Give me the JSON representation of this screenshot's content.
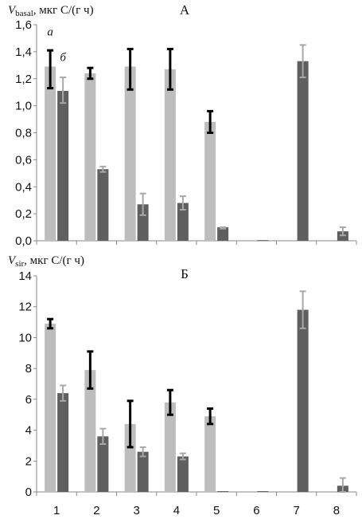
{
  "chart_data": [
    {
      "type": "bar",
      "title": "А",
      "ylabel_main": "V",
      "ylabel_sub": "basal",
      "ylabel_rest": ", мкг С/(г ч)",
      "categories": [
        "1",
        "2",
        "3",
        "4",
        "5",
        "6",
        "7",
        "8"
      ],
      "ylim": [
        0,
        1.6
      ],
      "yticks": [
        "0,0",
        "0,2",
        "0,4",
        "0,6",
        "0,8",
        "1,0",
        "1,2",
        "1,4",
        "1,6"
      ],
      "ytick_values": [
        0,
        0.2,
        0.4,
        0.6,
        0.8,
        1.0,
        1.2,
        1.4,
        1.6
      ],
      "grid": false,
      "colors": {
        "light": "#bdbdbd",
        "dark": "#5f5f5f",
        "err_dark": "#000000",
        "err_light": "#a8a8a8"
      },
      "annotations": [
        {
          "text": "а",
          "category": "1",
          "series": "light",
          "value": 1.52
        },
        {
          "text": "б",
          "category": "1",
          "series": "dark",
          "value": 1.33
        }
      ],
      "series": [
        {
          "key": "light",
          "values": [
            1.29,
            1.24,
            1.29,
            1.27,
            0.88,
            null,
            null,
            null
          ],
          "err_low": [
            0.16,
            0.04,
            0.17,
            0.15,
            0.08,
            null,
            null,
            null
          ],
          "err_high": [
            0.12,
            0.04,
            0.13,
            0.15,
            0.08,
            null,
            null,
            null
          ]
        },
        {
          "key": "dark",
          "values": [
            1.11,
            0.53,
            0.27,
            0.28,
            0.1,
            0.005,
            1.33,
            0.07
          ],
          "err_low": [
            0.09,
            0.02,
            0.08,
            0.05,
            0.01,
            0.0,
            0.12,
            0.03
          ],
          "err_high": [
            0.1,
            0.02,
            0.08,
            0.05,
            0.0,
            0.0,
            0.12,
            0.03
          ]
        }
      ]
    },
    {
      "type": "bar",
      "title": "Б",
      "ylabel_main": "V",
      "ylabel_sub": "sir",
      "ylabel_rest": ", мкг С/(г ч)",
      "categories": [
        "1",
        "2",
        "3",
        "4",
        "5",
        "6",
        "7",
        "8"
      ],
      "ylim": [
        0,
        14
      ],
      "yticks": [
        "0",
        "2",
        "4",
        "6",
        "8",
        "10",
        "12",
        "14"
      ],
      "ytick_values": [
        0,
        2,
        4,
        6,
        8,
        10,
        12,
        14
      ],
      "grid": false,
      "colors": {
        "light": "#bdbdbd",
        "dark": "#5f5f5f",
        "err_dark": "#000000",
        "err_light": "#a8a8a8"
      },
      "series": [
        {
          "key": "light",
          "values": [
            10.9,
            7.9,
            4.4,
            5.8,
            4.9,
            null,
            null,
            null
          ],
          "err_low": [
            0.3,
            1.2,
            1.5,
            0.8,
            0.5,
            null,
            null,
            null
          ],
          "err_high": [
            0.3,
            1.2,
            1.5,
            0.8,
            0.5,
            null,
            null,
            null
          ]
        },
        {
          "key": "dark",
          "values": [
            6.4,
            3.6,
            2.6,
            2.3,
            0.05,
            0.05,
            11.8,
            0.4
          ],
          "err_low": [
            0.5,
            0.5,
            0.3,
            0.2,
            0.0,
            0.0,
            1.2,
            0.4
          ],
          "err_high": [
            0.5,
            0.5,
            0.3,
            0.2,
            0.0,
            0.0,
            1.2,
            0.5
          ]
        }
      ]
    }
  ]
}
